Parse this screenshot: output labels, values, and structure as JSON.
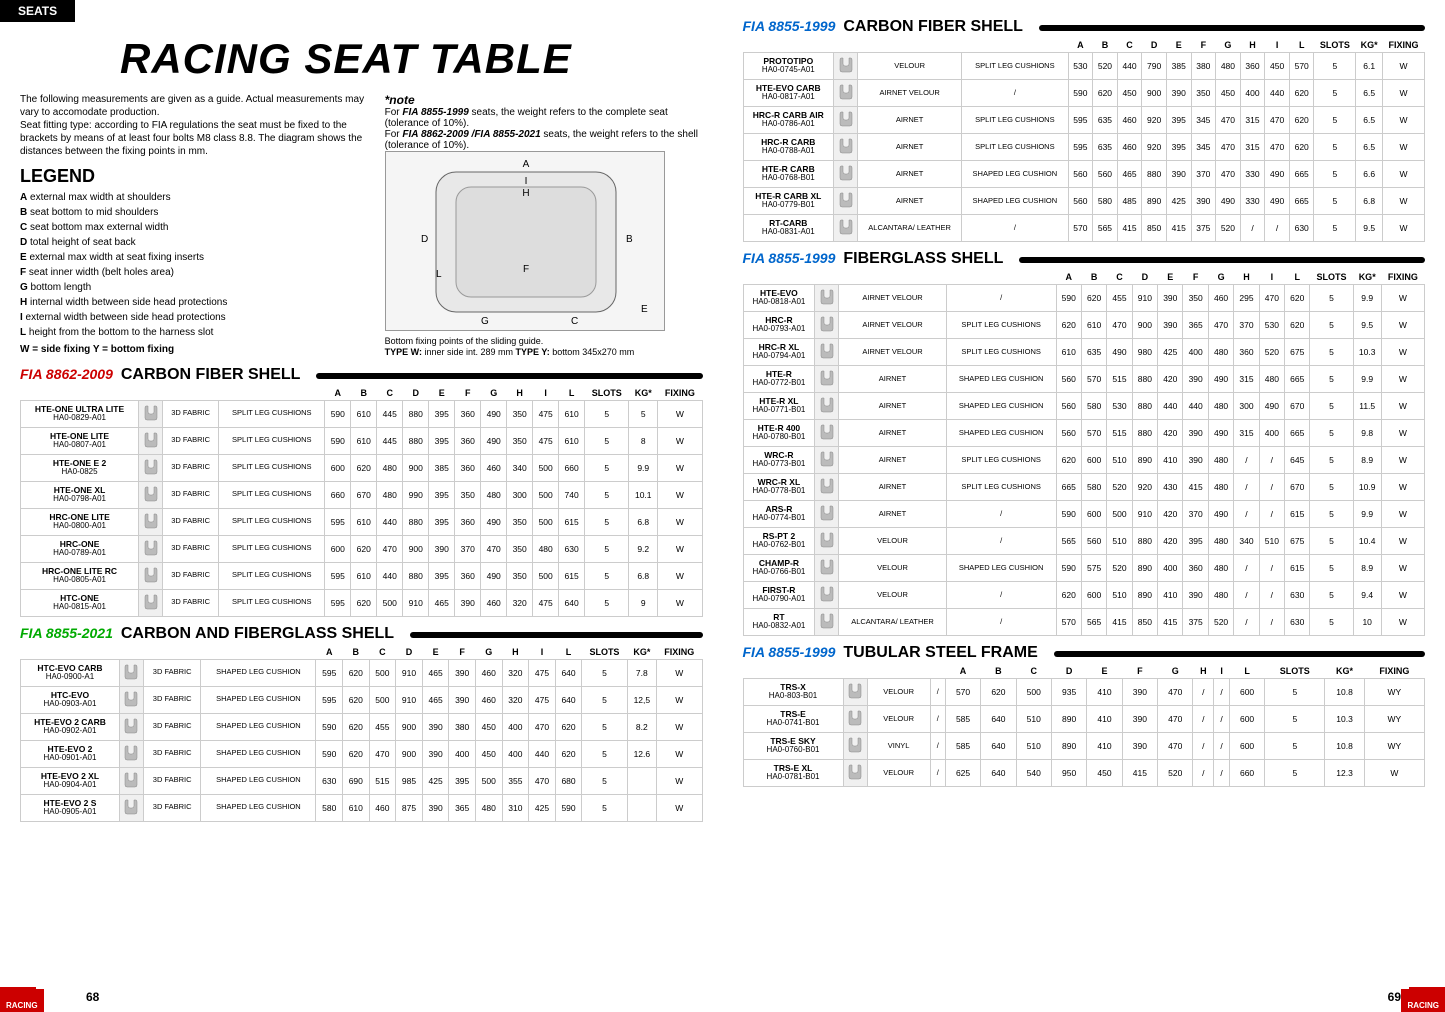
{
  "header": {
    "tab": "SEATS",
    "title": "RACING SEAT TABLE"
  },
  "intro": "The following measurements are given as a guide. Actual measurements may vary to accomodate production.\nSeat fitting type: according to FIA regulations the seat must be fixed to the brackets by means of at least four bolts M8 class 8.8. The diagram shows the distances between the fixing points in mm.",
  "note": {
    "title": "*note",
    "line1a": "For ",
    "line1b": "FIA 8855-1999",
    "line1c": " seats, the weight refers to the complete seat (tolerance of 10%).",
    "line2a": "For ",
    "line2b": "FIA 8862-2009 /FIA 8855-2021",
    "line2c": " seats, the weight refers to the shell (tolerance of 10%)."
  },
  "diagram_caption": {
    "l1": "Bottom fixing points of the sliding guide.",
    "l2a": "TYPE W:",
    "l2b": " inner side int. 289 mm ",
    "l2c": "TYPE Y:",
    "l2d": " bottom 345x270 mm"
  },
  "legend": {
    "title": "LEGEND",
    "items": [
      {
        "k": "A",
        "v": "external max width at shoulders"
      },
      {
        "k": "B",
        "v": "seat bottom to mid shoulders"
      },
      {
        "k": "C",
        "v": "seat bottom max external width"
      },
      {
        "k": "D",
        "v": "total height of seat back"
      },
      {
        "k": "E",
        "v": "external max width at seat fixing inserts"
      },
      {
        "k": "F",
        "v": "seat inner width (belt holes area)"
      },
      {
        "k": "G",
        "v": "bottom length"
      },
      {
        "k": "H",
        "v": "internal width between side head protections"
      },
      {
        "k": "I",
        "v": "external width between side head protections"
      },
      {
        "k": "L",
        "v": "height from the bottom to the harness slot"
      }
    ],
    "wy": "W = side fixing    Y = bottom fixing"
  },
  "columns": [
    "A",
    "B",
    "C",
    "D",
    "E",
    "F",
    "G",
    "H",
    "I",
    "L",
    "SLOTS",
    "KG*",
    "FIXING"
  ],
  "sections": [
    {
      "std": "FIA 8862-2009",
      "std_color": "red",
      "name": "CARBON FIBER SHELL",
      "side": "left",
      "rows": [
        {
          "n": "HTE-ONE ULTRA LITE",
          "c": "HA0-0829-A01",
          "m": "3D FABRIC",
          "cu": "SPLIT LEG CUSHIONS",
          "v": [
            "590",
            "610",
            "445",
            "880",
            "395",
            "360",
            "490",
            "350",
            "475",
            "610",
            "5",
            "5",
            "W"
          ]
        },
        {
          "n": "HTE-ONE LITE",
          "c": "HA0-0807-A01",
          "m": "3D FABRIC",
          "cu": "SPLIT LEG CUSHIONS",
          "v": [
            "590",
            "610",
            "445",
            "880",
            "395",
            "360",
            "490",
            "350",
            "475",
            "610",
            "5",
            "8",
            "W"
          ]
        },
        {
          "n": "HTE-ONE E 2",
          "c": "HA0-0825",
          "m": "3D FABRIC",
          "cu": "SPLIT LEG CUSHIONS",
          "v": [
            "600",
            "620",
            "480",
            "900",
            "385",
            "360",
            "460",
            "340",
            "500",
            "660",
            "5",
            "9.9",
            "W"
          ]
        },
        {
          "n": "HTE-ONE XL",
          "c": "HA0-0798-A01",
          "m": "3D FABRIC",
          "cu": "SPLIT LEG CUSHIONS",
          "v": [
            "660",
            "670",
            "480",
            "990",
            "395",
            "350",
            "480",
            "300",
            "500",
            "740",
            "5",
            "10.1",
            "W"
          ]
        },
        {
          "n": "HRC-ONE LITE",
          "c": "HA0-0800-A01",
          "m": "3D FABRIC",
          "cu": "SPLIT LEG CUSHIONS",
          "v": [
            "595",
            "610",
            "440",
            "880",
            "395",
            "360",
            "490",
            "350",
            "500",
            "615",
            "5",
            "6.8",
            "W"
          ]
        },
        {
          "n": "HRC-ONE",
          "c": "HA0-0789-A01",
          "m": "3D FABRIC",
          "cu": "SPLIT LEG CUSHIONS",
          "v": [
            "600",
            "620",
            "470",
            "900",
            "390",
            "370",
            "470",
            "350",
            "480",
            "630",
            "5",
            "9.2",
            "W"
          ]
        },
        {
          "n": "HRC-ONE LITE RC",
          "c": "HA0-0805-A01",
          "m": "3D FABRIC",
          "cu": "SPLIT LEG CUSHIONS",
          "v": [
            "595",
            "610",
            "440",
            "880",
            "395",
            "360",
            "490",
            "350",
            "500",
            "615",
            "5",
            "6.8",
            "W"
          ]
        },
        {
          "n": "HTC-ONE",
          "c": "HA0-0815-A01",
          "m": "3D FABRIC",
          "cu": "SPLIT LEG CUSHIONS",
          "v": [
            "595",
            "620",
            "500",
            "910",
            "465",
            "390",
            "460",
            "320",
            "475",
            "640",
            "5",
            "9",
            "W"
          ]
        }
      ]
    },
    {
      "std": "FIA 8855-2021",
      "std_color": "green",
      "name": "CARBON AND FIBERGLASS SHELL",
      "side": "left",
      "rows": [
        {
          "n": "HTC-EVO CARB",
          "c": "HA0-0900-A1",
          "m": "3D FABRIC",
          "cu": "SHAPED LEG CUSHION",
          "v": [
            "595",
            "620",
            "500",
            "910",
            "465",
            "390",
            "460",
            "320",
            "475",
            "640",
            "5",
            "7.8",
            "W"
          ]
        },
        {
          "n": "HTC-EVO",
          "c": "HA0-0903-A01",
          "m": "3D FABRIC",
          "cu": "SHAPED LEG CUSHION",
          "v": [
            "595",
            "620",
            "500",
            "910",
            "465",
            "390",
            "460",
            "320",
            "475",
            "640",
            "5",
            "12,5",
            "W"
          ]
        },
        {
          "n": "HTE-EVO 2 CARB",
          "c": "HA0-0902-A01",
          "m": "3D FABRIC",
          "cu": "SHAPED LEG CUSHION",
          "v": [
            "590",
            "620",
            "455",
            "900",
            "390",
            "380",
            "450",
            "400",
            "470",
            "620",
            "5",
            "8.2",
            "W"
          ]
        },
        {
          "n": "HTE-EVO 2",
          "c": "HA0-0901-A01",
          "m": "3D FABRIC",
          "cu": "SHAPED LEG CUSHION",
          "v": [
            "590",
            "620",
            "470",
            "900",
            "390",
            "400",
            "450",
            "400",
            "440",
            "620",
            "5",
            "12.6",
            "W"
          ]
        },
        {
          "n": "HTE-EVO 2 XL",
          "c": "HA0-0904-A01",
          "m": "3D FABRIC",
          "cu": "SHAPED LEG CUSHION",
          "v": [
            "630",
            "690",
            "515",
            "985",
            "425",
            "395",
            "500",
            "355",
            "470",
            "680",
            "5",
            "",
            "W"
          ]
        },
        {
          "n": "HTE-EVO 2 S",
          "c": "HA0-0905-A01",
          "m": "3D FABRIC",
          "cu": "SHAPED LEG CUSHION",
          "v": [
            "580",
            "610",
            "460",
            "875",
            "390",
            "365",
            "480",
            "310",
            "425",
            "590",
            "5",
            "",
            "W"
          ]
        }
      ]
    },
    {
      "std": "FIA 8855-1999",
      "std_color": "blue",
      "name": "CARBON FIBER SHELL",
      "side": "right",
      "rows": [
        {
          "n": "PROTOTIPO",
          "c": "HA0-0745-A01",
          "m": "VELOUR",
          "cu": "SPLIT LEG CUSHIONS",
          "v": [
            "530",
            "520",
            "440",
            "790",
            "385",
            "380",
            "480",
            "360",
            "450",
            "570",
            "5",
            "6.1",
            "W"
          ]
        },
        {
          "n": "HTE-EVO CARB",
          "c": "HA0-0817-A01",
          "m": "AIRNET VELOUR",
          "cu": "/",
          "v": [
            "590",
            "620",
            "450",
            "900",
            "390",
            "350",
            "450",
            "400",
            "440",
            "620",
            "5",
            "6.5",
            "W"
          ]
        },
        {
          "n": "HRC-R CARB AIR",
          "c": "HA0-0786-A01",
          "m": "AIRNET",
          "cu": "SPLIT LEG CUSHIONS",
          "v": [
            "595",
            "635",
            "460",
            "920",
            "395",
            "345",
            "470",
            "315",
            "470",
            "620",
            "5",
            "6.5",
            "W"
          ]
        },
        {
          "n": "HRC-R CARB",
          "c": "HA0-0788-A01",
          "m": "AIRNET",
          "cu": "SPLIT LEG CUSHIONS",
          "v": [
            "595",
            "635",
            "460",
            "920",
            "395",
            "345",
            "470",
            "315",
            "470",
            "620",
            "5",
            "6.5",
            "W"
          ]
        },
        {
          "n": "HTE-R CARB",
          "c": "HA0-0768-B01",
          "m": "AIRNET",
          "cu": "SHAPED LEG CUSHION",
          "v": [
            "560",
            "560",
            "465",
            "880",
            "390",
            "370",
            "470",
            "330",
            "490",
            "665",
            "5",
            "6.6",
            "W"
          ]
        },
        {
          "n": "HTE-R CARB XL",
          "c": "HA0-0779-B01",
          "m": "AIRNET",
          "cu": "SHAPED LEG CUSHION",
          "v": [
            "560",
            "580",
            "485",
            "890",
            "425",
            "390",
            "490",
            "330",
            "490",
            "665",
            "5",
            "6.8",
            "W"
          ]
        },
        {
          "n": "RT-CARB",
          "c": "HA0-0831-A01",
          "m": "ALCANTARA/ LEATHER",
          "cu": "/",
          "v": [
            "570",
            "565",
            "415",
            "850",
            "415",
            "375",
            "520",
            "/",
            "/",
            "630",
            "5",
            "9.5",
            "W"
          ]
        }
      ]
    },
    {
      "std": "FIA 8855-1999",
      "std_color": "blue",
      "name": "FIBERGLASS SHELL",
      "side": "right",
      "rows": [
        {
          "n": "HTE-EVO",
          "c": "HA0-0818-A01",
          "m": "AIRNET VELOUR",
          "cu": "/",
          "v": [
            "590",
            "620",
            "455",
            "910",
            "390",
            "350",
            "460",
            "295",
            "470",
            "620",
            "5",
            "9.9",
            "W"
          ]
        },
        {
          "n": "HRC-R",
          "c": "HA0-0793-A01",
          "m": "AIRNET VELOUR",
          "cu": "SPLIT LEG CUSHIONS",
          "v": [
            "620",
            "610",
            "470",
            "900",
            "390",
            "365",
            "470",
            "370",
            "530",
            "620",
            "5",
            "9.5",
            "W"
          ]
        },
        {
          "n": "HRC-R XL",
          "c": "HA0-0794-A01",
          "m": "AIRNET VELOUR",
          "cu": "SPLIT LEG CUSHIONS",
          "v": [
            "610",
            "635",
            "490",
            "980",
            "425",
            "400",
            "480",
            "360",
            "520",
            "675",
            "5",
            "10.3",
            "W"
          ]
        },
        {
          "n": "HTE-R",
          "c": "HA0-0772-B01",
          "m": "AIRNET",
          "cu": "SHAPED LEG CUSHION",
          "v": [
            "560",
            "570",
            "515",
            "880",
            "420",
            "390",
            "490",
            "315",
            "480",
            "665",
            "5",
            "9.9",
            "W"
          ]
        },
        {
          "n": "HTE-R XL",
          "c": "HA0-0771-B01",
          "m": "AIRNET",
          "cu": "SHAPED LEG CUSHION",
          "v": [
            "560",
            "580",
            "530",
            "880",
            "440",
            "440",
            "480",
            "300",
            "490",
            "670",
            "5",
            "11.5",
            "W"
          ]
        },
        {
          "n": "HTE-R 400",
          "c": "HA0-0780-B01",
          "m": "AIRNET",
          "cu": "SHAPED LEG CUSHION",
          "v": [
            "560",
            "570",
            "515",
            "880",
            "420",
            "390",
            "490",
            "315",
            "400",
            "665",
            "5",
            "9.8",
            "W"
          ]
        },
        {
          "n": "WRC-R",
          "c": "HA0-0773-B01",
          "m": "AIRNET",
          "cu": "SPLIT LEG CUSHIONS",
          "v": [
            "620",
            "600",
            "510",
            "890",
            "410",
            "390",
            "480",
            "/",
            "/",
            "645",
            "5",
            "8.9",
            "W"
          ]
        },
        {
          "n": "WRC-R XL",
          "c": "HA0-0778-B01",
          "m": "AIRNET",
          "cu": "SPLIT LEG CUSHIONS",
          "v": [
            "665",
            "580",
            "520",
            "920",
            "430",
            "415",
            "480",
            "/",
            "/",
            "670",
            "5",
            "10.9",
            "W"
          ]
        },
        {
          "n": "ARS-R",
          "c": "HA0-0774-B01",
          "m": "AIRNET",
          "cu": "/",
          "v": [
            "590",
            "600",
            "500",
            "910",
            "420",
            "370",
            "490",
            "/",
            "/",
            "615",
            "5",
            "9.9",
            "W"
          ]
        },
        {
          "n": "RS-PT 2",
          "c": "HA0-0762-B01",
          "m": "VELOUR",
          "cu": "/",
          "v": [
            "565",
            "560",
            "510",
            "880",
            "420",
            "395",
            "480",
            "340",
            "510",
            "675",
            "5",
            "10.4",
            "W"
          ]
        },
        {
          "n": "CHAMP-R",
          "c": "HA0-0766-B01",
          "m": "VELOUR",
          "cu": "SHAPED LEG CUSHION",
          "v": [
            "590",
            "575",
            "520",
            "890",
            "400",
            "360",
            "480",
            "/",
            "/",
            "615",
            "5",
            "8.9",
            "W"
          ]
        },
        {
          "n": "FIRST-R",
          "c": "HA0-0790-A01",
          "m": "VELOUR",
          "cu": "/",
          "v": [
            "620",
            "600",
            "510",
            "890",
            "410",
            "390",
            "480",
            "/",
            "/",
            "630",
            "5",
            "9.4",
            "W"
          ]
        },
        {
          "n": "RT",
          "c": "HA0-0832-A01",
          "m": "ALCANTARA/ LEATHER",
          "cu": "/",
          "v": [
            "570",
            "565",
            "415",
            "850",
            "415",
            "375",
            "520",
            "/",
            "/",
            "630",
            "5",
            "10",
            "W"
          ]
        }
      ]
    },
    {
      "std": "FIA 8855-1999",
      "std_color": "blue",
      "name": "TUBULAR STEEL FRAME",
      "side": "right",
      "rows": [
        {
          "n": "TRS-X",
          "c": "HA0-803-B01",
          "m": "VELOUR",
          "cu": "/",
          "v": [
            "570",
            "620",
            "500",
            "935",
            "410",
            "390",
            "470",
            "/",
            "/",
            "600",
            "5",
            "10.8",
            "WY"
          ]
        },
        {
          "n": "TRS-E",
          "c": "HA0-0741-B01",
          "m": "VELOUR",
          "cu": "/",
          "v": [
            "585",
            "640",
            "510",
            "890",
            "410",
            "390",
            "470",
            "/",
            "/",
            "600",
            "5",
            "10.3",
            "WY"
          ]
        },
        {
          "n": "TRS-E SKY",
          "c": "HA0-0760-B01",
          "m": "VINYL",
          "cu": "/",
          "v": [
            "585",
            "640",
            "510",
            "890",
            "410",
            "390",
            "470",
            "/",
            "/",
            "600",
            "5",
            "10.8",
            "WY"
          ]
        },
        {
          "n": "TRS-E XL",
          "c": "HA0-0781-B01",
          "m": "VELOUR",
          "cu": "/",
          "v": [
            "625",
            "640",
            "540",
            "950",
            "450",
            "415",
            "520",
            "/",
            "/",
            "660",
            "5",
            "12.3",
            "W"
          ]
        }
      ]
    }
  ],
  "page_left": "68",
  "page_right": "69",
  "racing_label": "RACING"
}
